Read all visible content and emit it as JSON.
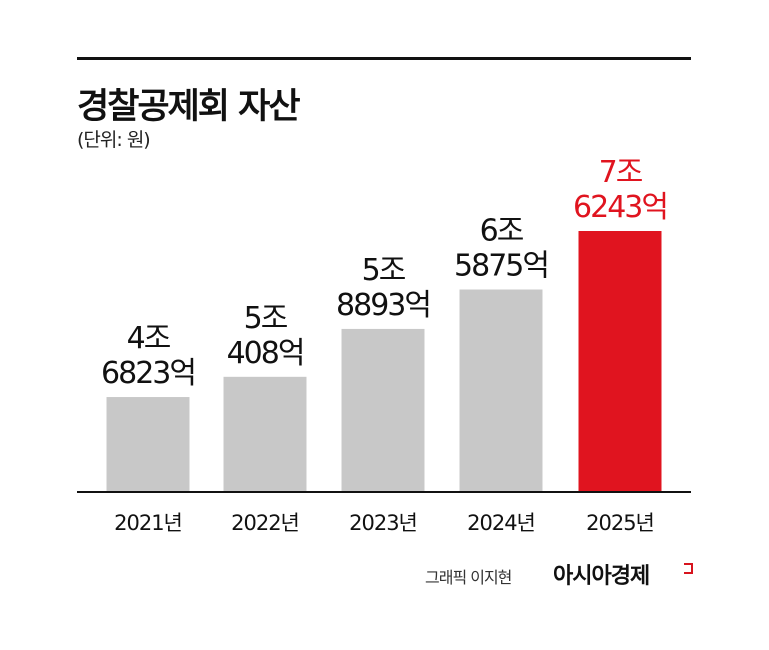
{
  "title": "경찰공제회 자산",
  "unit_note": "(단위: 원)",
  "credit": "그래픽 이지현",
  "brand": "아시아경제",
  "colors": {
    "default_bar": "#c8c8c8",
    "highlight_bar": "#e0141f",
    "highlight_text": "#e0141f",
    "axis": "#111111"
  },
  "chart_data": {
    "type": "bar",
    "title": "경찰공제회 자산",
    "unit": "(단위: 원)",
    "categories": [
      "2021년",
      "2022년",
      "2023년",
      "2024년",
      "2025년"
    ],
    "values": [
      46823,
      50408,
      58893,
      65875,
      76243
    ],
    "value_unit": "억 원",
    "data_labels": [
      [
        "4조",
        "6823억"
      ],
      [
        "5조",
        "408억"
      ],
      [
        "5조",
        "8893억"
      ],
      [
        "6조",
        "5875억"
      ],
      [
        "7조",
        "6243억"
      ]
    ],
    "highlight_index": 4,
    "grid": false,
    "legend": "none"
  }
}
